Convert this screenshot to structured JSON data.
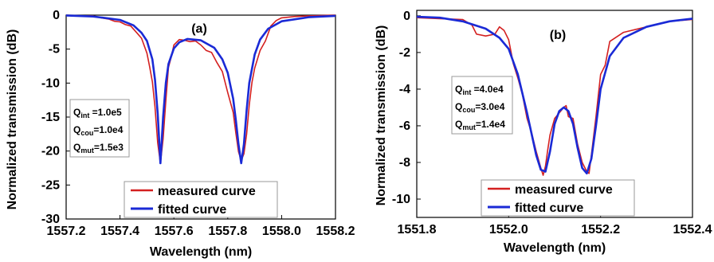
{
  "chart_data": [
    {
      "panel_label": "(a)",
      "type": "line",
      "xlabel": "Wavelength (nm)",
      "ylabel": "Normalized transmission (dB)",
      "xlim": [
        1557.2,
        1558.2
      ],
      "ylim": [
        -30,
        0
      ],
      "xticks": [
        1557.2,
        1557.4,
        1557.6,
        1557.8,
        1558.0,
        1558.2
      ],
      "xtick_labels": [
        "1557.2",
        "1557.4",
        "1557.6",
        "1557.8",
        "1558.0",
        "1558.2"
      ],
      "yticks": [
        0,
        -5,
        -10,
        -15,
        -20,
        -25,
        -30
      ],
      "ytick_labels": [
        "0",
        "-5",
        "-10",
        "-15",
        "-20",
        "-25",
        "-30"
      ],
      "grid": false,
      "legend_position": "bottom-right",
      "annotation": [
        {
          "sym": "Q",
          "sub": "int",
          "val": " =1.0e5"
        },
        {
          "sym": "Q",
          "sub": "cou",
          "val": "=1.0e4"
        },
        {
          "sym": "Q",
          "sub": "mut",
          "val": "=1.5e3"
        }
      ],
      "series": [
        {
          "name": "measured curve",
          "color": "#d42020",
          "x": [
            1557.2,
            1557.25,
            1557.3,
            1557.33,
            1557.36,
            1557.38,
            1557.4,
            1557.42,
            1557.44,
            1557.46,
            1557.48,
            1557.5,
            1557.51,
            1557.52,
            1557.53,
            1557.54,
            1557.55,
            1557.56,
            1557.57,
            1557.58,
            1557.59,
            1557.6,
            1557.62,
            1557.64,
            1557.66,
            1557.68,
            1557.7,
            1557.72,
            1557.74,
            1557.76,
            1557.78,
            1557.8,
            1557.82,
            1557.83,
            1557.84,
            1557.85,
            1557.86,
            1557.87,
            1557.88,
            1557.89,
            1557.9,
            1557.92,
            1557.94,
            1557.96,
            1557.98,
            1558.0,
            1558.05,
            1558.1,
            1558.2
          ],
          "y": [
            0,
            -0.1,
            -0.1,
            -0.4,
            -0.6,
            -0.9,
            -1.0,
            -1.4,
            -1.6,
            -2.5,
            -3.4,
            -5.6,
            -7.6,
            -9.8,
            -13.5,
            -18.8,
            -21.8,
            -18.2,
            -12.6,
            -7.7,
            -6.2,
            -4.4,
            -3.6,
            -3.7,
            -3.9,
            -3.8,
            -4.4,
            -5.2,
            -5.5,
            -7.0,
            -8.3,
            -11.4,
            -14.3,
            -17.3,
            -20.1,
            -21.4,
            -20.4,
            -17.5,
            -13.2,
            -9.9,
            -7.8,
            -5.2,
            -3.8,
            -1.6,
            -0.8,
            -0.4,
            -0.2,
            -0.1,
            0
          ]
        },
        {
          "name": "fitted curve",
          "color": "#1a2ad6",
          "x": [
            1557.2,
            1557.3,
            1557.4,
            1557.45,
            1557.48,
            1557.5,
            1557.52,
            1557.53,
            1557.54,
            1557.55,
            1557.56,
            1557.57,
            1557.58,
            1557.6,
            1557.62,
            1557.65,
            1557.7,
            1557.75,
            1557.78,
            1557.8,
            1557.82,
            1557.83,
            1557.84,
            1557.85,
            1557.86,
            1557.87,
            1557.88,
            1557.9,
            1557.92,
            1557.95,
            1558.0,
            1558.1,
            1558.2
          ],
          "y": [
            -0.05,
            -0.2,
            -0.7,
            -1.5,
            -2.6,
            -3.8,
            -6.5,
            -9.5,
            -14.5,
            -21.8,
            -15.0,
            -10.0,
            -7.2,
            -4.9,
            -4.0,
            -3.5,
            -3.7,
            -4.8,
            -6.5,
            -8.5,
            -12.3,
            -15.4,
            -19.0,
            -21.8,
            -19.0,
            -14.0,
            -10.0,
            -5.8,
            -3.6,
            -2.0,
            -0.9,
            -0.3,
            -0.1
          ]
        }
      ]
    },
    {
      "panel_label": "(b)",
      "type": "line",
      "xlabel": "Wavelength (nm)",
      "ylabel": "Normalized transmission (dB)",
      "xlim": [
        1551.8,
        1552.4
      ],
      "ylim": [
        -11,
        0.3
      ],
      "xticks": [
        1551.8,
        1552.0,
        1552.2,
        1552.4
      ],
      "xtick_labels": [
        "1551.8",
        "1552.0",
        "1552.2",
        "1552.4"
      ],
      "yticks": [
        0,
        -2,
        -4,
        -6,
        -8,
        -10
      ],
      "ytick_labels": [
        "0",
        "-2",
        "-4",
        "-6",
        "-8",
        "-10"
      ],
      "grid": false,
      "legend_position": "bottom-right",
      "annotation": [
        {
          "sym": "Q",
          "sub": "int",
          "val": " =4.0e4"
        },
        {
          "sym": "Q",
          "sub": "cou",
          "val": "=3.0e4"
        },
        {
          "sym": "Q",
          "sub": "mut",
          "val": "=1.4e4"
        }
      ],
      "series": [
        {
          "name": "measured curve",
          "color": "#d42020",
          "x": [
            1551.8,
            1551.85,
            1551.9,
            1551.92,
            1551.93,
            1551.95,
            1551.97,
            1551.98,
            1551.99,
            1552.0,
            1552.01,
            1552.02,
            1552.03,
            1552.04,
            1552.05,
            1552.06,
            1552.07,
            1552.075,
            1552.08,
            1552.085,
            1552.09,
            1552.1,
            1552.11,
            1552.12,
            1552.125,
            1552.13,
            1552.14,
            1552.15,
            1552.16,
            1552.17,
            1552.175,
            1552.18,
            1552.19,
            1552.2,
            1552.21,
            1552.22,
            1552.25,
            1552.3,
            1552.35,
            1552.4
          ],
          "y": [
            -0.1,
            -0.15,
            -0.2,
            -0.5,
            -1.0,
            -1.1,
            -1.0,
            -0.6,
            -0.8,
            -1.3,
            -2.6,
            -3.4,
            -4.3,
            -5.6,
            -6.4,
            -7.4,
            -8.3,
            -8.7,
            -8.2,
            -7.3,
            -6.5,
            -5.6,
            -5.3,
            -5.0,
            -4.9,
            -5.5,
            -5.6,
            -7.0,
            -8.0,
            -8.5,
            -8.6,
            -7.6,
            -5.5,
            -3.2,
            -2.7,
            -1.4,
            -0.9,
            -0.6,
            -0.3,
            -0.2
          ]
        },
        {
          "name": "fitted curve",
          "color": "#1a2ad6",
          "x": [
            1551.8,
            1551.85,
            1551.9,
            1551.95,
            1551.98,
            1552.0,
            1552.02,
            1552.04,
            1552.06,
            1552.07,
            1552.08,
            1552.09,
            1552.1,
            1552.11,
            1552.12,
            1552.13,
            1552.14,
            1552.15,
            1552.16,
            1552.17,
            1552.18,
            1552.19,
            1552.2,
            1552.22,
            1552.25,
            1552.3,
            1552.35,
            1552.4
          ],
          "y": [
            -0.05,
            -0.1,
            -0.3,
            -0.7,
            -1.2,
            -1.8,
            -3.2,
            -5.3,
            -7.6,
            -8.4,
            -8.5,
            -7.4,
            -5.9,
            -5.2,
            -5.0,
            -5.2,
            -5.9,
            -7.2,
            -8.3,
            -8.6,
            -7.8,
            -6.0,
            -4.0,
            -2.2,
            -1.2,
            -0.6,
            -0.3,
            -0.15
          ]
        }
      ]
    }
  ]
}
